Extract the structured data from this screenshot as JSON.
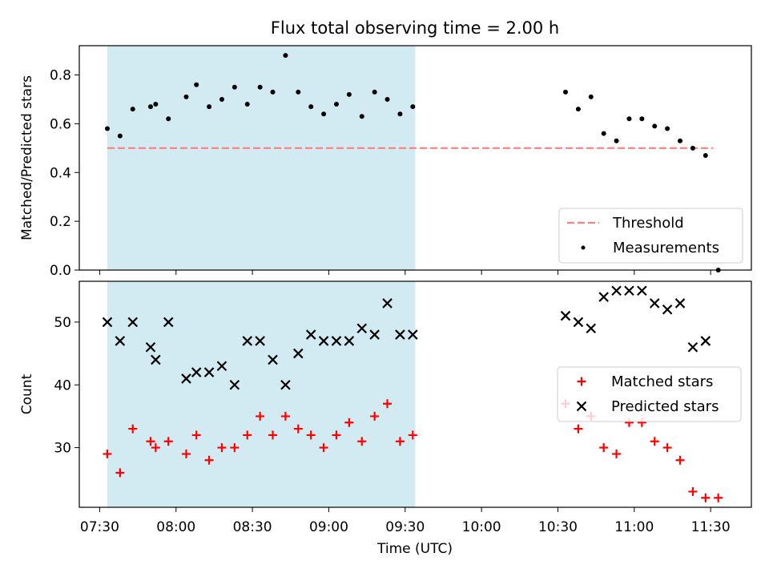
{
  "chart_data": {
    "title": "Flux total observing time = 2.00 h",
    "xlabel": "Time (UTC)",
    "x_tick_labels": [
      "07:30",
      "08:00",
      "08:30",
      "09:00",
      "09:30",
      "10:00",
      "10:30",
      "11:00",
      "11:30"
    ],
    "x_ticks_minutes": [
      450,
      480,
      510,
      540,
      570,
      600,
      630,
      660,
      690
    ],
    "xlim_minutes": [
      442,
      706
    ],
    "shaded_interval": {
      "start": "07:33",
      "end": "09:34",
      "color": "#add8e6"
    },
    "panels": [
      {
        "type": "scatter",
        "ylabel": "Matched/Predicted stars",
        "ylim": [
          0,
          0.92
        ],
        "yticks": [
          0.0,
          0.2,
          0.4,
          0.6,
          0.8
        ],
        "ytick_labels": [
          "0.0",
          "0.2",
          "0.4",
          "0.6",
          "0.8"
        ],
        "threshold": {
          "name": "Threshold",
          "value": 0.5,
          "start": "07:33",
          "end": "11:31",
          "color": "#ff7f7f"
        },
        "legend": {
          "placement": "lower-right",
          "entries": [
            "Threshold",
            "Measurements"
          ]
        },
        "series": [
          {
            "name": "Measurements",
            "marker": "dot",
            "color": "#000000",
            "x": [
              "07:33",
              "07:38",
              "07:43",
              "07:50",
              "07:52",
              "07:57",
              "08:04",
              "08:08",
              "08:13",
              "08:18",
              "08:23",
              "08:28",
              "08:33",
              "08:38",
              "08:43",
              "08:48",
              "08:53",
              "08:58",
              "09:03",
              "09:08",
              "09:13",
              "09:18",
              "09:23",
              "09:28",
              "09:33",
              "10:33",
              "10:38",
              "10:43",
              "10:48",
              "10:53",
              "10:58",
              "11:03",
              "11:08",
              "11:13",
              "11:18",
              "11:23",
              "11:28",
              "11:33"
            ],
            "y": [
              0.58,
              0.55,
              0.66,
              0.67,
              0.68,
              0.62,
              0.71,
              0.76,
              0.67,
              0.7,
              0.75,
              0.68,
              0.75,
              0.73,
              0.88,
              0.73,
              0.67,
              0.64,
              0.68,
              0.72,
              0.63,
              0.73,
              0.7,
              0.64,
              0.67,
              0.73,
              0.66,
              0.71,
              0.56,
              0.53,
              0.62,
              0.62,
              0.59,
              0.58,
              0.53,
              0.5,
              0.47,
              0.0
            ]
          }
        ]
      },
      {
        "type": "scatter",
        "ylabel": "Count",
        "ylim": [
          20.5,
          56.5
        ],
        "yticks": [
          30,
          40,
          50
        ],
        "ytick_labels": [
          "30",
          "40",
          "50"
        ],
        "legend": {
          "placement": "center-right",
          "entries": [
            "Matched stars",
            "Predicted stars"
          ]
        },
        "series": [
          {
            "name": "Matched stars",
            "marker": "plus",
            "color": "#ff0000",
            "x": [
              "07:33",
              "07:38",
              "07:43",
              "07:50",
              "07:52",
              "07:57",
              "08:04",
              "08:08",
              "08:13",
              "08:18",
              "08:23",
              "08:28",
              "08:33",
              "08:38",
              "08:43",
              "08:48",
              "08:53",
              "08:58",
              "09:03",
              "09:08",
              "09:13",
              "09:18",
              "09:23",
              "09:28",
              "09:33",
              "10:33",
              "10:38",
              "10:43",
              "10:48",
              "10:53",
              "10:58",
              "11:03",
              "11:08",
              "11:13",
              "11:18",
              "11:23",
              "11:28",
              "11:33"
            ],
            "y": [
              29,
              26,
              33,
              31,
              30,
              31,
              29,
              32,
              28,
              30,
              30,
              32,
              35,
              32,
              35,
              33,
              32,
              30,
              32,
              34,
              31,
              35,
              37,
              31,
              32,
              37,
              33,
              35,
              30,
              29,
              34,
              34,
              31,
              30,
              28,
              23,
              22,
              22
            ]
          },
          {
            "name": "Predicted stars",
            "marker": "x",
            "color": "#000000",
            "x": [
              "07:33",
              "07:38",
              "07:43",
              "07:50",
              "07:52",
              "07:57",
              "08:04",
              "08:08",
              "08:13",
              "08:18",
              "08:23",
              "08:28",
              "08:33",
              "08:38",
              "08:43",
              "08:48",
              "08:53",
              "08:58",
              "09:03",
              "09:08",
              "09:13",
              "09:18",
              "09:23",
              "09:28",
              "09:33",
              "10:33",
              "10:38",
              "10:43",
              "10:48",
              "10:53",
              "10:58",
              "11:03",
              "11:08",
              "11:13",
              "11:18",
              "11:23",
              "11:28"
            ],
            "y": [
              50,
              47,
              50,
              46,
              44,
              50,
              41,
              42,
              42,
              43,
              40,
              47,
              47,
              44,
              40,
              45,
              48,
              47,
              47,
              47,
              49,
              48,
              53,
              48,
              48,
              51,
              50,
              49,
              54,
              55,
              55,
              55,
              53,
              52,
              53,
              46,
              47
            ]
          }
        ]
      }
    ]
  }
}
